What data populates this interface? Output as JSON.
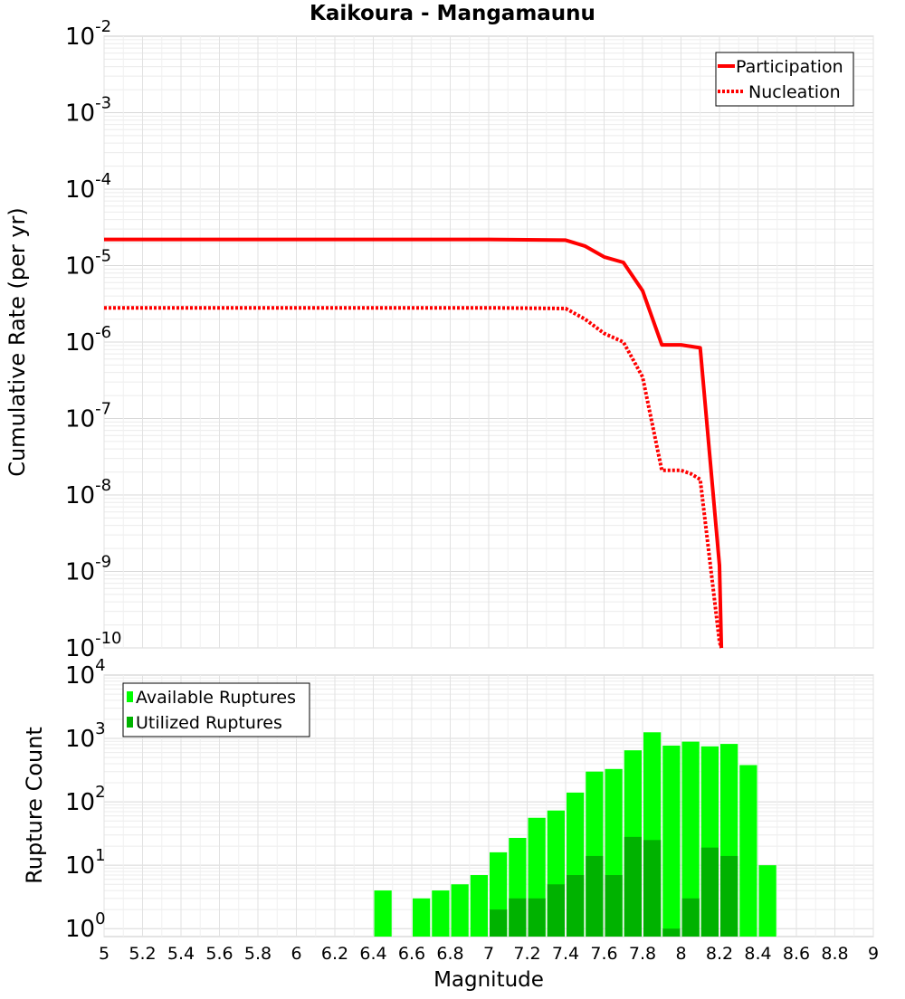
{
  "title": "Kaikoura - Mangamaunu",
  "xlabel": "Magnitude",
  "chart_data": [
    {
      "type": "line",
      "title": "Kaikoura - Mangamaunu",
      "xlabel": "Magnitude",
      "ylabel": "Cumulative Rate (per yr)",
      "xlim": [
        5,
        9
      ],
      "ylim": [
        1e-10,
        0.01
      ],
      "yscale": "log",
      "grid": true,
      "legend_position": "top-right",
      "series": [
        {
          "name": "Participation",
          "style": "solid",
          "color": "#ff0000",
          "x": [
            5.0,
            7.0,
            7.4,
            7.5,
            7.6,
            7.7,
            7.8,
            7.9,
            8.0,
            8.1,
            8.2,
            8.21
          ],
          "y": [
            2.2e-05,
            2.2e-05,
            2.15e-05,
            1.8e-05,
            1.3e-05,
            1.1e-05,
            4.7e-06,
            9.2e-07,
            9.2e-07,
            8.4e-07,
            1.2e-09,
            1e-10
          ]
        },
        {
          "name": "Nucleation",
          "style": "dotted",
          "color": "#ff0000",
          "x": [
            5.0,
            7.0,
            7.4,
            7.5,
            7.6,
            7.7,
            7.8,
            7.9,
            8.0,
            8.05,
            8.1,
            8.2,
            8.21
          ],
          "y": [
            2.8e-06,
            2.8e-06,
            2.75e-06,
            2e-06,
            1.3e-06,
            1e-06,
            3.5e-07,
            2.1e-08,
            2.1e-08,
            1.9e-08,
            1.6e-08,
            1.2e-10,
            1e-10
          ]
        }
      ]
    },
    {
      "type": "bar",
      "xlabel": "Magnitude",
      "ylabel": "Rupture Count",
      "xlim": [
        5,
        9
      ],
      "ylim": [
        0.75,
        10000
      ],
      "yscale": "log",
      "grid": true,
      "legend_position": "top-left",
      "x": [
        6.45,
        6.65,
        6.75,
        6.85,
        6.95,
        7.05,
        7.15,
        7.25,
        7.35,
        7.45,
        7.55,
        7.65,
        7.75,
        7.85,
        7.95,
        8.05,
        8.15,
        8.25,
        8.35,
        8.45
      ],
      "series": [
        {
          "name": "Available Ruptures",
          "color": "#00ff00",
          "values": [
            4,
            3,
            4,
            5,
            7,
            16,
            27,
            56,
            73,
            140,
            300,
            330,
            650,
            1250,
            770,
            890,
            750,
            820,
            380,
            10
          ]
        },
        {
          "name": "Utilized Ruptures",
          "color": "#00b200",
          "values": [
            0,
            0,
            0,
            0,
            0,
            2,
            3,
            3,
            5,
            7,
            14,
            7,
            28,
            25,
            1,
            3,
            19,
            14,
            0,
            0
          ]
        }
      ]
    }
  ]
}
